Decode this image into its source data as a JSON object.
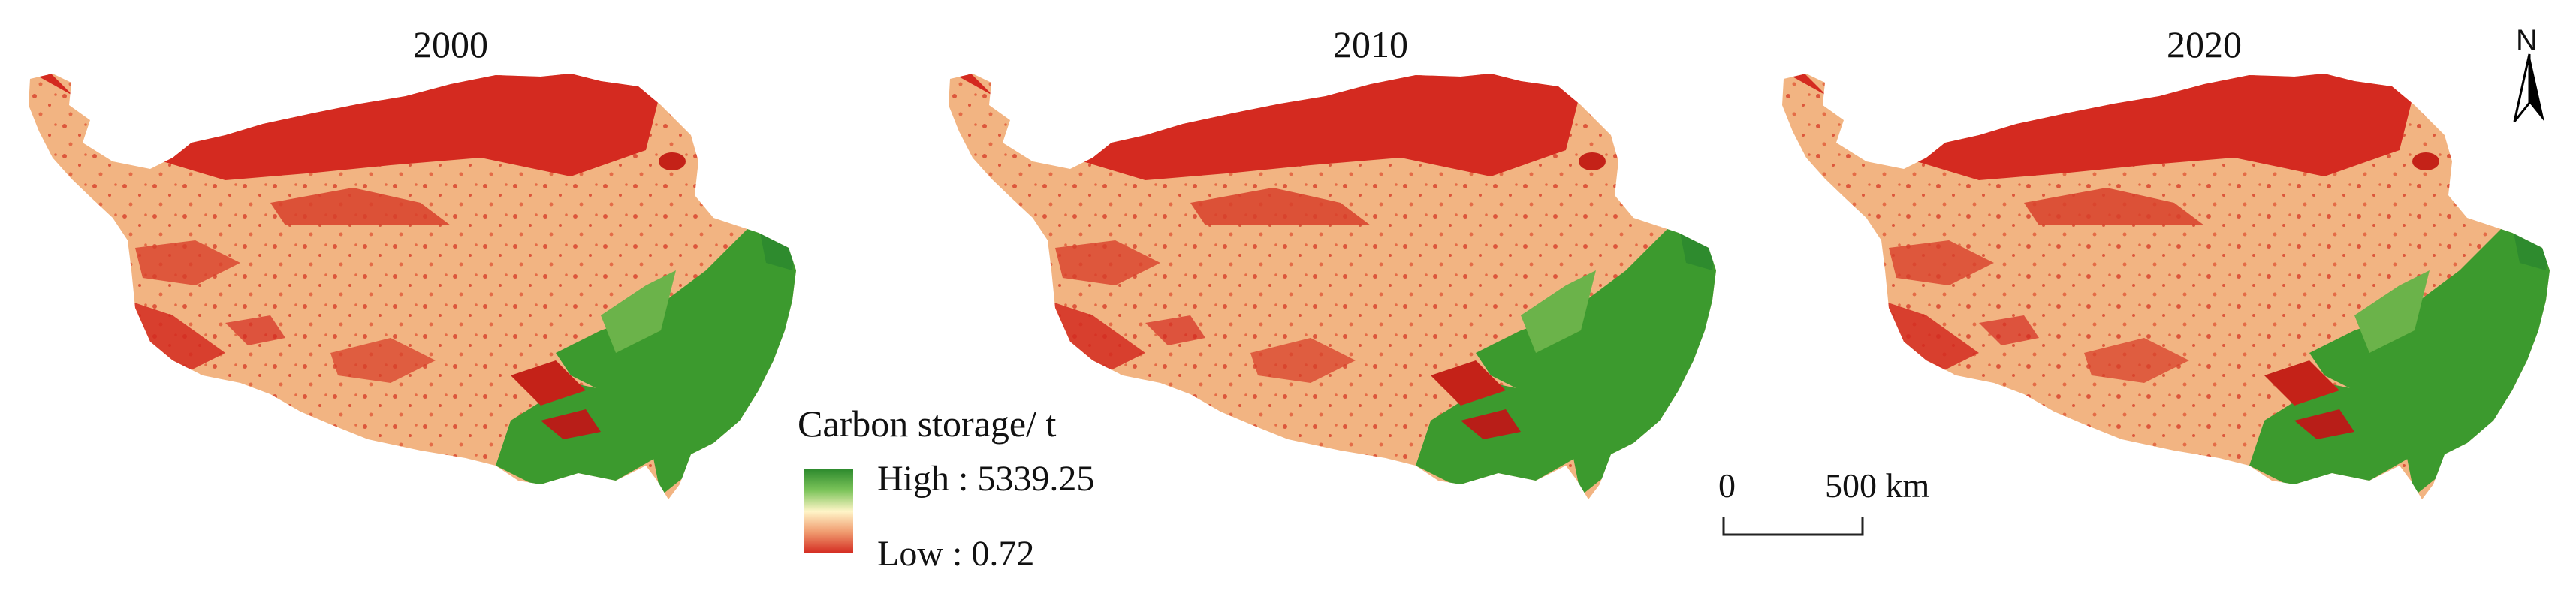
{
  "panels": [
    {
      "year": "2000"
    },
    {
      "year": "2010"
    },
    {
      "year": "2020"
    }
  ],
  "legend": {
    "title": "Carbon storage/ t",
    "high_label": "High : 5339.25",
    "low_label": "Low  : 0.72",
    "high_value": 5339.25,
    "low_value": 0.72,
    "ramp_colors": [
      "#2e8b2e",
      "#fff5c8",
      "#d42a20"
    ]
  },
  "scale_bar": {
    "start_label": "0",
    "end_label": "500 km"
  },
  "north_arrow": {
    "label": "N",
    "icon": "north-arrow-icon"
  },
  "colors": {
    "low_red": "#d42a20",
    "mid_tan": "#f2b482",
    "high_green": "#3c9a2e"
  }
}
